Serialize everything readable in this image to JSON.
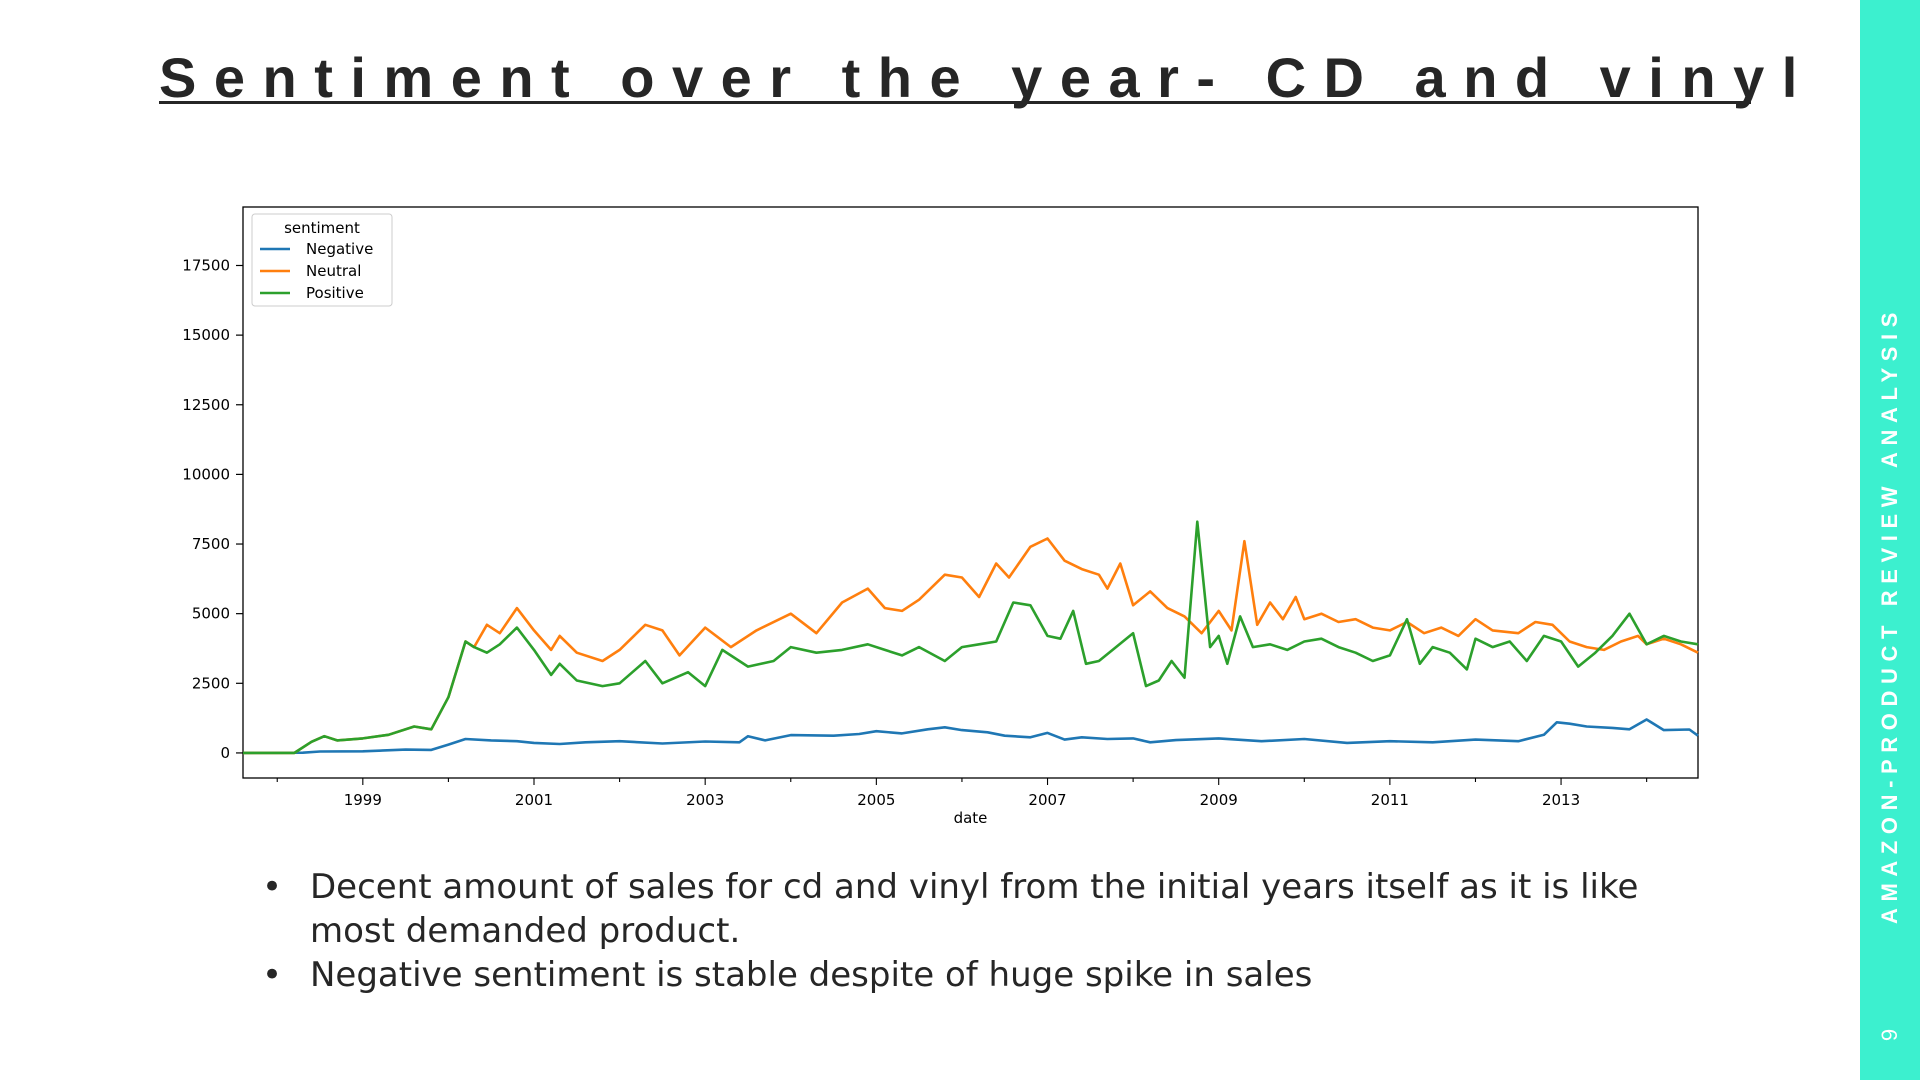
{
  "slide": {
    "title": "Sentiment over the year- CD and vinyl",
    "side_label": "AMAZON-PRODUCT REVIEW ANALYSIS",
    "page_number": "9",
    "accent_color": "#3cf0cf",
    "bullets": [
      "Decent amount of sales for cd and vinyl from the initial years itself as it is like most demanded product.",
      "Negative sentiment is stable despite of huge spike in sales"
    ]
  },
  "chart_data": {
    "type": "line",
    "xlabel": "date",
    "ylabel": "",
    "xlim": [
      1997.6,
      2014.6
    ],
    "ylim": [
      -900,
      19600
    ],
    "x_ticks": [
      1999,
      2001,
      2003,
      2005,
      2007,
      2009,
      2011,
      2013
    ],
    "y_ticks": [
      0,
      2500,
      5000,
      7500,
      10000,
      12500,
      15000,
      17500
    ],
    "legend_title": "sentiment",
    "legend_position": "upper-left",
    "grid": false,
    "series": [
      {
        "name": "Negative",
        "color": "#1f77b4",
        "points": [
          [
            1997.6,
            0
          ],
          [
            1998.3,
            10
          ],
          [
            1998.5,
            50
          ],
          [
            1999.0,
            60
          ],
          [
            1999.5,
            120
          ],
          [
            1999.8,
            110
          ],
          [
            2000.0,
            300
          ],
          [
            2000.2,
            500
          ],
          [
            2000.5,
            450
          ],
          [
            2000.8,
            420
          ],
          [
            2001.0,
            360
          ],
          [
            2001.3,
            320
          ],
          [
            2001.6,
            380
          ],
          [
            2002.0,
            420
          ],
          [
            2002.5,
            340
          ],
          [
            2003.0,
            410
          ],
          [
            2003.4,
            380
          ],
          [
            2003.5,
            600
          ],
          [
            2003.7,
            450
          ],
          [
            2004.0,
            640
          ],
          [
            2004.5,
            620
          ],
          [
            2004.8,
            680
          ],
          [
            2005.0,
            780
          ],
          [
            2005.3,
            700
          ],
          [
            2005.6,
            850
          ],
          [
            2005.8,
            920
          ],
          [
            2006.0,
            820
          ],
          [
            2006.3,
            740
          ],
          [
            2006.5,
            620
          ],
          [
            2006.8,
            560
          ],
          [
            2007.0,
            720
          ],
          [
            2007.2,
            480
          ],
          [
            2007.4,
            560
          ],
          [
            2007.7,
            500
          ],
          [
            2008.0,
            520
          ],
          [
            2008.2,
            380
          ],
          [
            2008.5,
            460
          ],
          [
            2009.0,
            520
          ],
          [
            2009.5,
            420
          ],
          [
            2010.0,
            500
          ],
          [
            2010.5,
            360
          ],
          [
            2011.0,
            420
          ],
          [
            2011.5,
            380
          ],
          [
            2012.0,
            480
          ],
          [
            2012.5,
            420
          ],
          [
            2012.8,
            650
          ],
          [
            2012.95,
            1100
          ],
          [
            2013.1,
            1050
          ],
          [
            2013.3,
            950
          ],
          [
            2013.6,
            900
          ],
          [
            2013.8,
            850
          ],
          [
            2014.0,
            1200
          ],
          [
            2014.2,
            820
          ],
          [
            2014.5,
            840
          ],
          [
            2014.6,
            620
          ]
        ]
      },
      {
        "name": "Neutral",
        "color": "#ff7f0e",
        "points": [
          [
            1997.6,
            0
          ],
          [
            1998.2,
            0
          ],
          [
            1998.4,
            400
          ],
          [
            1998.55,
            600
          ],
          [
            1998.7,
            450
          ],
          [
            1999.0,
            520
          ],
          [
            1999.3,
            650
          ],
          [
            1999.6,
            950
          ],
          [
            1999.8,
            850
          ],
          [
            2000.0,
            2000
          ],
          [
            2000.2,
            4000
          ],
          [
            2000.3,
            3800
          ],
          [
            2000.45,
            4600
          ],
          [
            2000.6,
            4300
          ],
          [
            2000.8,
            5200
          ],
          [
            2001.0,
            4400
          ],
          [
            2001.2,
            3700
          ],
          [
            2001.3,
            4200
          ],
          [
            2001.5,
            3600
          ],
          [
            2001.8,
            3300
          ],
          [
            2002.0,
            3700
          ],
          [
            2002.3,
            4600
          ],
          [
            2002.5,
            4400
          ],
          [
            2002.7,
            3500
          ],
          [
            2003.0,
            4500
          ],
          [
            2003.3,
            3800
          ],
          [
            2003.6,
            4400
          ],
          [
            2004.0,
            5000
          ],
          [
            2004.3,
            4300
          ],
          [
            2004.6,
            5400
          ],
          [
            2004.9,
            5900
          ],
          [
            2005.1,
            5200
          ],
          [
            2005.3,
            5100
          ],
          [
            2005.5,
            5500
          ],
          [
            2005.8,
            6400
          ],
          [
            2006.0,
            6300
          ],
          [
            2006.2,
            5600
          ],
          [
            2006.4,
            6800
          ],
          [
            2006.55,
            6300
          ],
          [
            2006.8,
            7400
          ],
          [
            2007.0,
            7700
          ],
          [
            2007.2,
            6900
          ],
          [
            2007.4,
            6600
          ],
          [
            2007.6,
            6400
          ],
          [
            2007.7,
            5900
          ],
          [
            2007.85,
            6800
          ],
          [
            2008.0,
            5300
          ],
          [
            2008.2,
            5800
          ],
          [
            2008.4,
            5200
          ],
          [
            2008.6,
            4900
          ],
          [
            2008.8,
            4300
          ],
          [
            2009.0,
            5100
          ],
          [
            2009.15,
            4400
          ],
          [
            2009.3,
            7600
          ],
          [
            2009.45,
            4600
          ],
          [
            2009.6,
            5400
          ],
          [
            2009.75,
            4800
          ],
          [
            2009.9,
            5600
          ],
          [
            2010.0,
            4800
          ],
          [
            2010.2,
            5000
          ],
          [
            2010.4,
            4700
          ],
          [
            2010.6,
            4800
          ],
          [
            2010.8,
            4500
          ],
          [
            2011.0,
            4400
          ],
          [
            2011.2,
            4700
          ],
          [
            2011.4,
            4300
          ],
          [
            2011.6,
            4500
          ],
          [
            2011.8,
            4200
          ],
          [
            2012.0,
            4800
          ],
          [
            2012.2,
            4400
          ],
          [
            2012.5,
            4300
          ],
          [
            2012.7,
            4700
          ],
          [
            2012.9,
            4600
          ],
          [
            2013.1,
            4000
          ],
          [
            2013.3,
            3800
          ],
          [
            2013.5,
            3700
          ],
          [
            2013.7,
            4000
          ],
          [
            2013.9,
            4200
          ],
          [
            2014.0,
            3900
          ],
          [
            2014.2,
            4100
          ],
          [
            2014.4,
            3900
          ],
          [
            2014.6,
            3600
          ]
        ]
      },
      {
        "name": "Positive",
        "color": "#2ca02c",
        "points": [
          [
            1997.6,
            0
          ],
          [
            1998.2,
            0
          ],
          [
            1998.4,
            400
          ],
          [
            1998.55,
            600
          ],
          [
            1998.7,
            450
          ],
          [
            1999.0,
            520
          ],
          [
            1999.3,
            650
          ],
          [
            1999.6,
            950
          ],
          [
            1999.8,
            850
          ],
          [
            2000.0,
            2000
          ],
          [
            2000.2,
            4000
          ],
          [
            2000.3,
            3800
          ],
          [
            2000.45,
            3600
          ],
          [
            2000.6,
            3900
          ],
          [
            2000.8,
            4500
          ],
          [
            2001.0,
            3700
          ],
          [
            2001.2,
            2800
          ],
          [
            2001.3,
            3200
          ],
          [
            2001.5,
            2600
          ],
          [
            2001.8,
            2400
          ],
          [
            2002.0,
            2500
          ],
          [
            2002.3,
            3300
          ],
          [
            2002.5,
            2500
          ],
          [
            2002.8,
            2900
          ],
          [
            2003.0,
            2400
          ],
          [
            2003.2,
            3700
          ],
          [
            2003.5,
            3100
          ],
          [
            2003.8,
            3300
          ],
          [
            2004.0,
            3800
          ],
          [
            2004.3,
            3600
          ],
          [
            2004.6,
            3700
          ],
          [
            2004.9,
            3900
          ],
          [
            2005.1,
            3700
          ],
          [
            2005.3,
            3500
          ],
          [
            2005.5,
            3800
          ],
          [
            2005.8,
            3300
          ],
          [
            2006.0,
            3800
          ],
          [
            2006.2,
            3900
          ],
          [
            2006.4,
            4000
          ],
          [
            2006.6,
            5400
          ],
          [
            2006.8,
            5300
          ],
          [
            2007.0,
            4200
          ],
          [
            2007.15,
            4100
          ],
          [
            2007.3,
            5100
          ],
          [
            2007.45,
            3200
          ],
          [
            2007.6,
            3300
          ],
          [
            2007.8,
            3800
          ],
          [
            2008.0,
            4300
          ],
          [
            2008.15,
            2400
          ],
          [
            2008.3,
            2600
          ],
          [
            2008.45,
            3300
          ],
          [
            2008.6,
            2700
          ],
          [
            2008.75,
            8300
          ],
          [
            2008.9,
            3800
          ],
          [
            2009.0,
            4200
          ],
          [
            2009.1,
            3200
          ],
          [
            2009.25,
            4900
          ],
          [
            2009.4,
            3800
          ],
          [
            2009.6,
            3900
          ],
          [
            2009.8,
            3700
          ],
          [
            2010.0,
            4000
          ],
          [
            2010.2,
            4100
          ],
          [
            2010.4,
            3800
          ],
          [
            2010.6,
            3600
          ],
          [
            2010.8,
            3300
          ],
          [
            2011.0,
            3500
          ],
          [
            2011.2,
            4800
          ],
          [
            2011.35,
            3200
          ],
          [
            2011.5,
            3800
          ],
          [
            2011.7,
            3600
          ],
          [
            2011.9,
            3000
          ],
          [
            2012.0,
            4100
          ],
          [
            2012.2,
            3800
          ],
          [
            2012.4,
            4000
          ],
          [
            2012.6,
            3300
          ],
          [
            2012.8,
            4200
          ],
          [
            2013.0,
            4000
          ],
          [
            2013.2,
            3100
          ],
          [
            2013.4,
            3600
          ],
          [
            2013.6,
            4200
          ],
          [
            2013.8,
            5000
          ],
          [
            2014.0,
            3900
          ],
          [
            2014.2,
            4200
          ],
          [
            2014.4,
            4000
          ],
          [
            2014.6,
            3900
          ]
        ]
      }
    ]
  }
}
